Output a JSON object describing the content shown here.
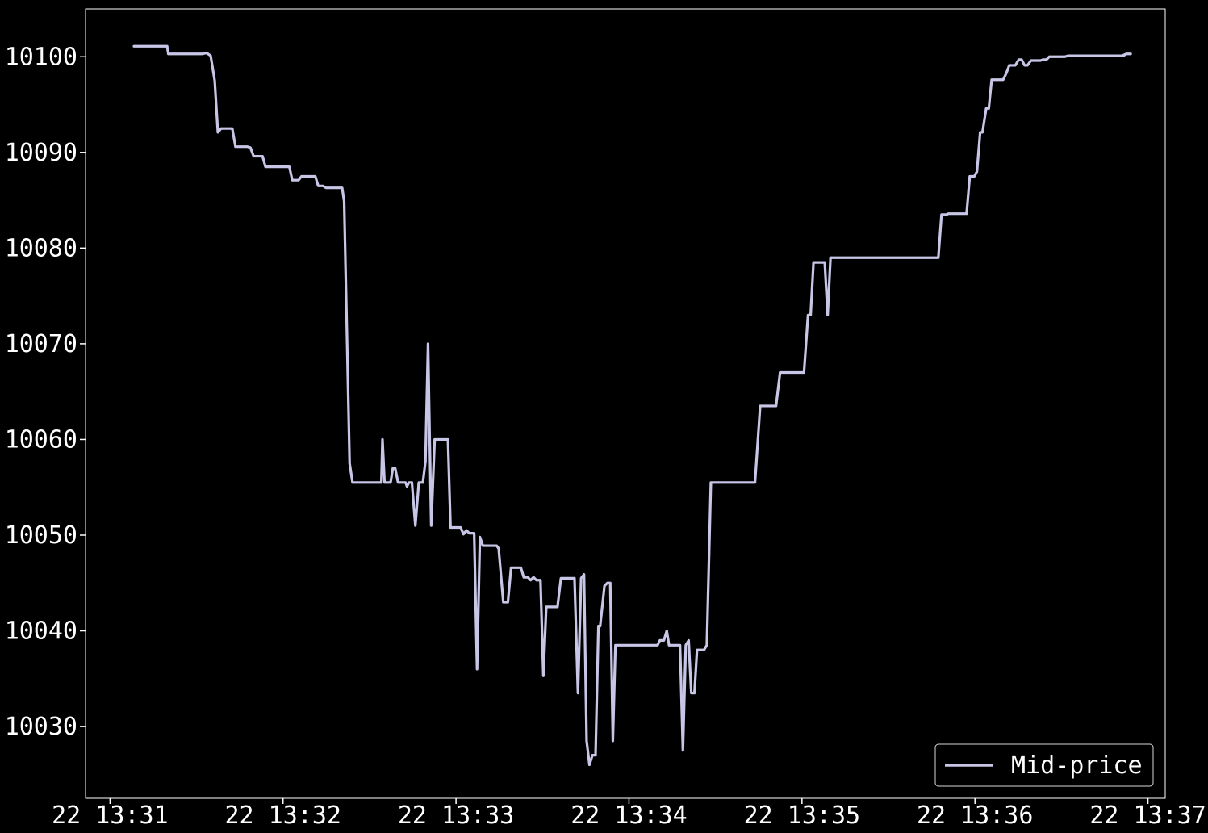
{
  "chart_data": {
    "type": "line",
    "title": "",
    "xlabel": "",
    "ylabel": "",
    "background_color": "#000000",
    "axis_color": "#ffffff",
    "grid": false,
    "legend_position": "bottom-right",
    "xlim": [
      -8.5,
      366
    ],
    "ylim": [
      10022.5,
      10105
    ],
    "x_ticks": [
      {
        "value": 0,
        "label": "22 13:31"
      },
      {
        "value": 60,
        "label": "22 13:32"
      },
      {
        "value": 120,
        "label": "22 13:33"
      },
      {
        "value": 180,
        "label": "22 13:34"
      },
      {
        "value": 240,
        "label": "22 13:35"
      },
      {
        "value": 300,
        "label": "22 13:36"
      },
      {
        "value": 360,
        "label": "22 13:37"
      }
    ],
    "y_ticks": [
      {
        "value": 10030,
        "label": "10030"
      },
      {
        "value": 10040,
        "label": "10040"
      },
      {
        "value": 10050,
        "label": "10050"
      },
      {
        "value": 10060,
        "label": "10060"
      },
      {
        "value": 10070,
        "label": "10070"
      },
      {
        "value": 10080,
        "label": "10080"
      },
      {
        "value": 10090,
        "label": "10090"
      },
      {
        "value": 10100,
        "label": "10100"
      }
    ],
    "series": [
      {
        "name": "Mid-price",
        "color": "#c8c6e6",
        "points": [
          [
            8.3,
            10101.1
          ],
          [
            19.8,
            10101.1
          ],
          [
            20.2,
            10100.3
          ],
          [
            32.1,
            10100.3
          ],
          [
            33.5,
            10100.4
          ],
          [
            34.9,
            10100.1
          ],
          [
            36.3,
            10097.5
          ],
          [
            37.4,
            10092.1
          ],
          [
            38.5,
            10092.5
          ],
          [
            42.4,
            10092.5
          ],
          [
            43.5,
            10090.6
          ],
          [
            47.7,
            10090.6
          ],
          [
            48.7,
            10090.5
          ],
          [
            49.8,
            10089.6
          ],
          [
            52.9,
            10089.6
          ],
          [
            53.9,
            10088.5
          ],
          [
            62.2,
            10088.5
          ],
          [
            63.2,
            10087.1
          ],
          [
            65.4,
            10087.1
          ],
          [
            66.4,
            10087.5
          ],
          [
            71.2,
            10087.5
          ],
          [
            72.2,
            10086.5
          ],
          [
            73.9,
            10086.5
          ],
          [
            74.9,
            10086.3
          ],
          [
            80.5,
            10086.3
          ],
          [
            81.2,
            10084.9
          ],
          [
            83.1,
            10057.5
          ],
          [
            84.1,
            10055.5
          ],
          [
            94.1,
            10055.5
          ],
          [
            94.5,
            10060.0
          ],
          [
            95.2,
            10055.5
          ],
          [
            97.3,
            10055.5
          ],
          [
            98.1,
            10057.0
          ],
          [
            98.9,
            10057.0
          ],
          [
            99.9,
            10055.5
          ],
          [
            102.5,
            10055.5
          ],
          [
            103.0,
            10055.1
          ],
          [
            103.7,
            10055.5
          ],
          [
            104.7,
            10055.5
          ],
          [
            105.9,
            10051.0
          ],
          [
            107.1,
            10055.5
          ],
          [
            108.5,
            10055.5
          ],
          [
            109.4,
            10057.7
          ],
          [
            110.3,
            10070.0
          ],
          [
            111.4,
            10051.0
          ],
          [
            112.6,
            10060.0
          ],
          [
            117.2,
            10060.0
          ],
          [
            118.1,
            10050.8
          ],
          [
            121.6,
            10050.8
          ],
          [
            122.6,
            10050.1
          ],
          [
            123.6,
            10050.5
          ],
          [
            124.6,
            10050.2
          ],
          [
            126.3,
            10050.2
          ],
          [
            127.3,
            10036.0
          ],
          [
            128.3,
            10049.8
          ],
          [
            129.3,
            10048.9
          ],
          [
            134.1,
            10048.9
          ],
          [
            134.8,
            10048.6
          ],
          [
            136.4,
            10043.0
          ],
          [
            138.0,
            10043.0
          ],
          [
            139.1,
            10046.6
          ],
          [
            142.5,
            10046.6
          ],
          [
            143.5,
            10045.6
          ],
          [
            144.9,
            10045.6
          ],
          [
            145.9,
            10045.3
          ],
          [
            146.9,
            10045.6
          ],
          [
            147.9,
            10045.3
          ],
          [
            149.3,
            10045.3
          ],
          [
            150.3,
            10035.3
          ],
          [
            151.3,
            10042.5
          ],
          [
            155.2,
            10042.5
          ],
          [
            156.4,
            10045.5
          ],
          [
            161.1,
            10045.5
          ],
          [
            162.3,
            10033.5
          ],
          [
            163.4,
            10045.5
          ],
          [
            164.4,
            10045.9
          ],
          [
            165.3,
            10028.5
          ],
          [
            166.3,
            10026.0
          ],
          [
            167.3,
            10027.0
          ],
          [
            168.4,
            10027.0
          ],
          [
            169.4,
            10040.5
          ],
          [
            170.0,
            10040.5
          ],
          [
            171.5,
            10044.7
          ],
          [
            172.5,
            10045.0
          ],
          [
            173.5,
            10045.0
          ],
          [
            174.4,
            10028.5
          ],
          [
            175.3,
            10038.5
          ],
          [
            189.9,
            10038.5
          ],
          [
            190.7,
            10039.0
          ],
          [
            192.1,
            10039.0
          ],
          [
            193.1,
            10040.0
          ],
          [
            193.9,
            10038.5
          ],
          [
            197.7,
            10038.5
          ],
          [
            198.7,
            10027.5
          ],
          [
            199.7,
            10038.5
          ],
          [
            200.7,
            10039.0
          ],
          [
            201.6,
            10033.5
          ],
          [
            202.7,
            10033.5
          ],
          [
            203.6,
            10038.0
          ],
          [
            206.0,
            10038.0
          ],
          [
            207.0,
            10038.5
          ],
          [
            208.4,
            10055.5
          ],
          [
            223.7,
            10055.5
          ],
          [
            225.5,
            10063.5
          ],
          [
            231.0,
            10063.5
          ],
          [
            232.4,
            10067.0
          ],
          [
            240.7,
            10067.0
          ],
          [
            242.1,
            10073.0
          ],
          [
            243.0,
            10073.0
          ],
          [
            244.0,
            10078.5
          ],
          [
            247.9,
            10078.5
          ],
          [
            248.9,
            10073.0
          ],
          [
            249.9,
            10079.0
          ],
          [
            287.3,
            10079.0
          ],
          [
            288.4,
            10083.5
          ],
          [
            290.1,
            10083.5
          ],
          [
            290.8,
            10083.6
          ],
          [
            297.1,
            10083.6
          ],
          [
            298.2,
            10087.5
          ],
          [
            299.8,
            10087.5
          ],
          [
            300.7,
            10088.0
          ],
          [
            301.8,
            10092.1
          ],
          [
            302.6,
            10092.1
          ],
          [
            303.9,
            10094.6
          ],
          [
            304.8,
            10094.6
          ],
          [
            305.8,
            10097.6
          ],
          [
            309.8,
            10097.6
          ],
          [
            310.9,
            10098.3
          ],
          [
            311.9,
            10099.1
          ],
          [
            314.0,
            10099.1
          ],
          [
            315.2,
            10099.7
          ],
          [
            316.2,
            10099.7
          ],
          [
            317.2,
            10099.1
          ],
          [
            318.2,
            10099.1
          ],
          [
            319.4,
            10099.6
          ],
          [
            322.7,
            10099.6
          ],
          [
            323.6,
            10099.7
          ],
          [
            324.8,
            10099.7
          ],
          [
            325.8,
            10100.0
          ],
          [
            331.2,
            10100.0
          ],
          [
            332.2,
            10100.1
          ],
          [
            351.5,
            10100.1
          ],
          [
            352.5,
            10100.3
          ],
          [
            351.0,
            10100.1
          ],
          [
            352.6,
            10100.3
          ],
          [
            354.0,
            10100.3
          ]
        ]
      }
    ]
  }
}
